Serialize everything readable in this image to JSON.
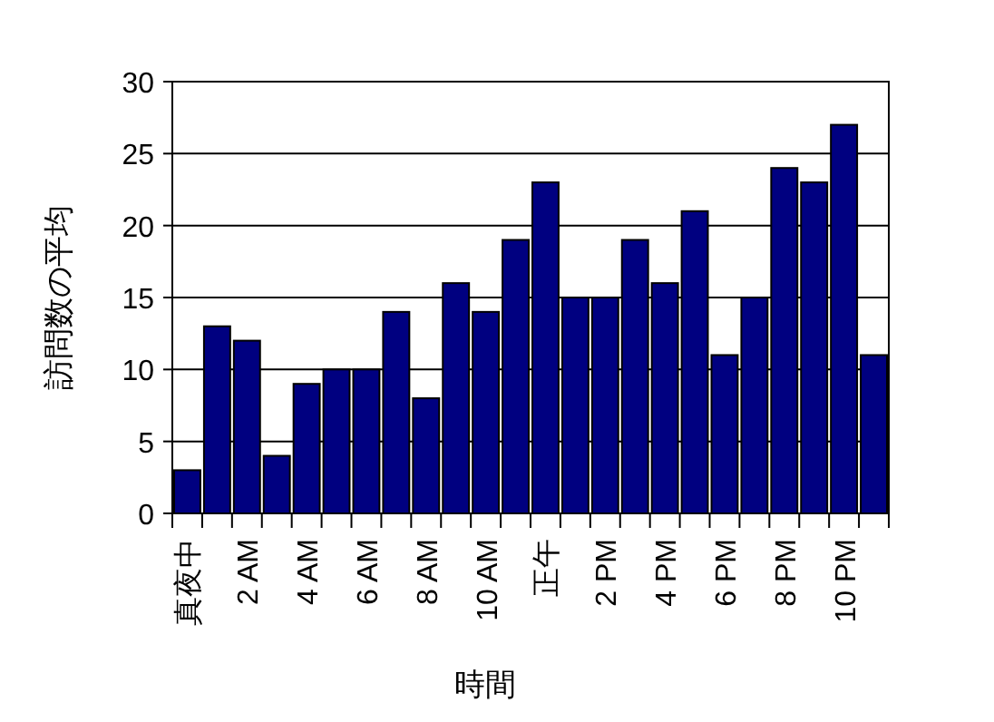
{
  "chart_data": {
    "type": "bar",
    "xlabel": "時間",
    "ylabel": "訪問数の平均",
    "categories": [
      "真夜中",
      null,
      "2 AM",
      null,
      "4 AM",
      null,
      "6 AM",
      null,
      "8 AM",
      null,
      "10 AM",
      null,
      "正午",
      null,
      "2 PM",
      null,
      "4 PM",
      null,
      "6 PM",
      null,
      "8 PM",
      null,
      "10 PM",
      null
    ],
    "values": [
      3,
      13,
      12,
      4,
      9,
      10,
      10,
      14,
      8,
      16,
      14,
      19,
      23,
      15,
      15,
      19,
      16,
      21,
      11,
      15,
      24,
      23,
      27,
      11
    ],
    "color": "#000080",
    "ylim": [
      0,
      30
    ],
    "yticks": [
      0,
      5,
      10,
      15,
      20,
      25,
      30
    ],
    "grid": "y"
  }
}
